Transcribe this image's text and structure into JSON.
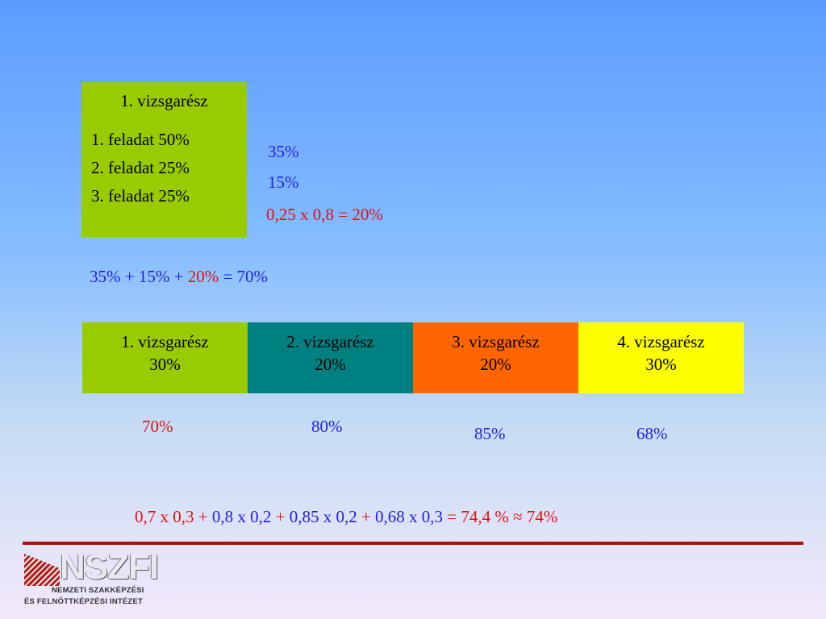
{
  "exam_part1": {
    "title": "1. vizsgarész",
    "tasks": [
      "1. feladat 50%",
      "2. feladat 25%",
      "3. feladat 25%"
    ],
    "results": [
      "35%",
      "15%",
      "0,25 x 0,8 = 20%"
    ]
  },
  "sum_line": {
    "a": "35% + 15% + ",
    "b": "20%",
    "c": " = 70%"
  },
  "parts": [
    {
      "name": "1. vizsgarész",
      "weight": "30%",
      "color": "#99cc00",
      "score": "70%"
    },
    {
      "name": "2. vizsgarész",
      "weight": "20%",
      "color": "#008080",
      "score": "80%"
    },
    {
      "name": "3. vizsgarész",
      "weight": "20%",
      "color": "#ff6600",
      "score": "85%"
    },
    {
      "name": "4. vizsgarész",
      "weight": "30%",
      "color": "#ffff00",
      "score": "68%"
    }
  ],
  "formula": {
    "t1": "0,7 x 0,3 + ",
    "t2": " 0,8 x 0,2",
    "t3": " + ",
    "t4": "0,85 x 0,2",
    "t5": " + ",
    "t6": "0,68 x 0,3",
    "t7": " = 74,4 % ≈ 74%"
  },
  "logo": {
    "word": "NSZFI",
    "line1": "NEMZETI SZAKKÉPZÉSI",
    "line2": "ÉS FELNŐTTKÉPZÉSI INTÉZET"
  },
  "colors": {
    "blue_text": "#1f1fe0",
    "red_text": "#e01010",
    "divider": "#a81010"
  }
}
